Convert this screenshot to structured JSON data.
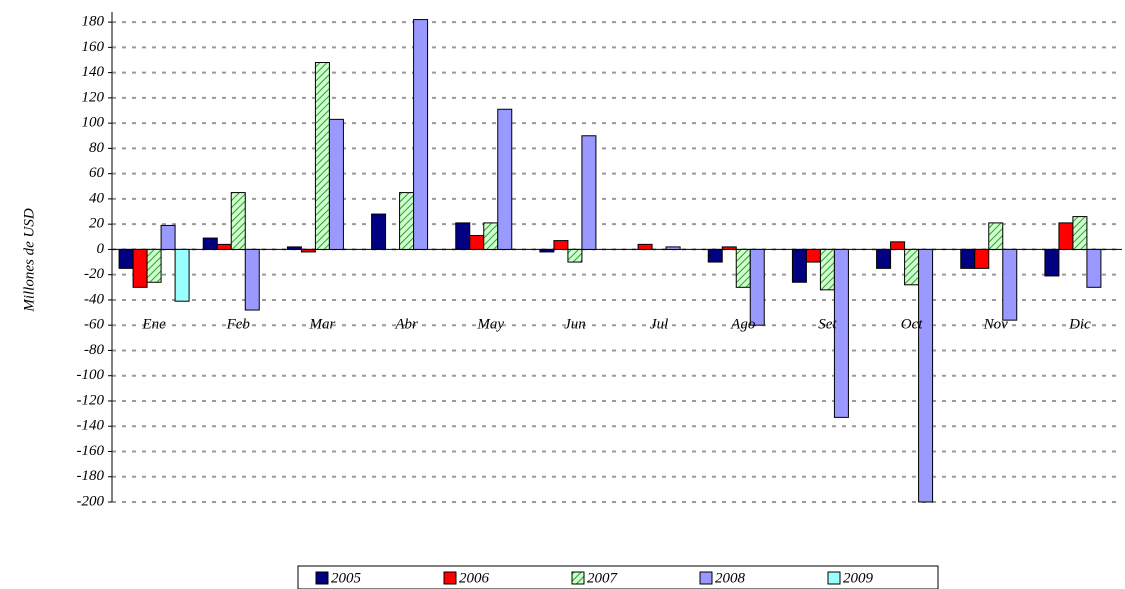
{
  "chart_data": {
    "type": "bar",
    "y_label": "Millones de USD",
    "categories": [
      "Ene",
      "Feb",
      "Mar",
      "Abr",
      "May",
      "Jun",
      "Jul",
      "Ago",
      "Set",
      "Oct",
      "Nov",
      "Dic"
    ],
    "series": [
      {
        "name": "2005",
        "color": "#000080",
        "values": [
          -15,
          9,
          2,
          28,
          21,
          -2,
          0,
          -10,
          -26,
          -15,
          -15,
          -21
        ]
      },
      {
        "name": "2006",
        "color": "#ff0000",
        "values": [
          -30,
          4,
          -2,
          0,
          11,
          7,
          4,
          2,
          -10,
          6,
          -15,
          21
        ]
      },
      {
        "name": "2007",
        "color": "#ccffcc",
        "hatch": true,
        "values": [
          -26,
          45,
          148,
          45,
          21,
          -10,
          0,
          -30,
          -32,
          -28,
          21,
          26
        ]
      },
      {
        "name": "2008",
        "color": "#9999ff",
        "values": [
          19,
          -48,
          103,
          182,
          111,
          90,
          2,
          -60,
          -133,
          -200,
          -56,
          -30
        ]
      },
      {
        "name": "2009",
        "color": "#99ffff",
        "values": [
          -41,
          null,
          null,
          null,
          null,
          null,
          null,
          null,
          null,
          null,
          null,
          null
        ]
      }
    ],
    "ylim": [
      -200,
      188
    ],
    "yticks": [
      -200,
      -180,
      -160,
      -140,
      -120,
      -100,
      -80,
      -60,
      -40,
      -20,
      0,
      20,
      40,
      60,
      80,
      100,
      120,
      140,
      160,
      180
    ],
    "grid": true,
    "legend": "bottom"
  }
}
